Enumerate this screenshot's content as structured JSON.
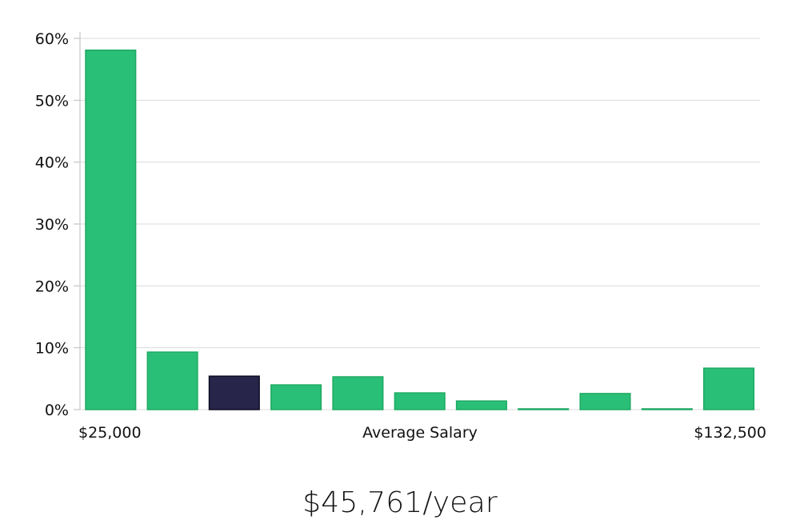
{
  "chart_data": {
    "type": "bar",
    "title": "",
    "xlabel": "Average Salary",
    "ylabel": "",
    "x_range_labels": {
      "min": "$25,000",
      "max": "$132,500"
    },
    "ylim": [
      0,
      60
    ],
    "y_ticks": [
      0,
      10,
      20,
      30,
      40,
      50,
      60
    ],
    "y_tick_labels": [
      "0%",
      "10%",
      "20%",
      "30%",
      "40%",
      "50%",
      "60%"
    ],
    "grid": true,
    "values": [
      58.1,
      9.3,
      5.4,
      4.0,
      5.3,
      2.7,
      1.4,
      0.1,
      2.6,
      0.1,
      6.7
    ],
    "highlight_index": 2,
    "colors": {
      "bar": "#2abf76",
      "bar_stroke": "#1faa64",
      "highlight": "#272549",
      "highlight_stroke": "#0e0d24",
      "grid": "#dcdcdc",
      "axis": "#bbbbbb",
      "text": "#111111"
    }
  },
  "summary": {
    "average_salary": "$45,761/year"
  }
}
